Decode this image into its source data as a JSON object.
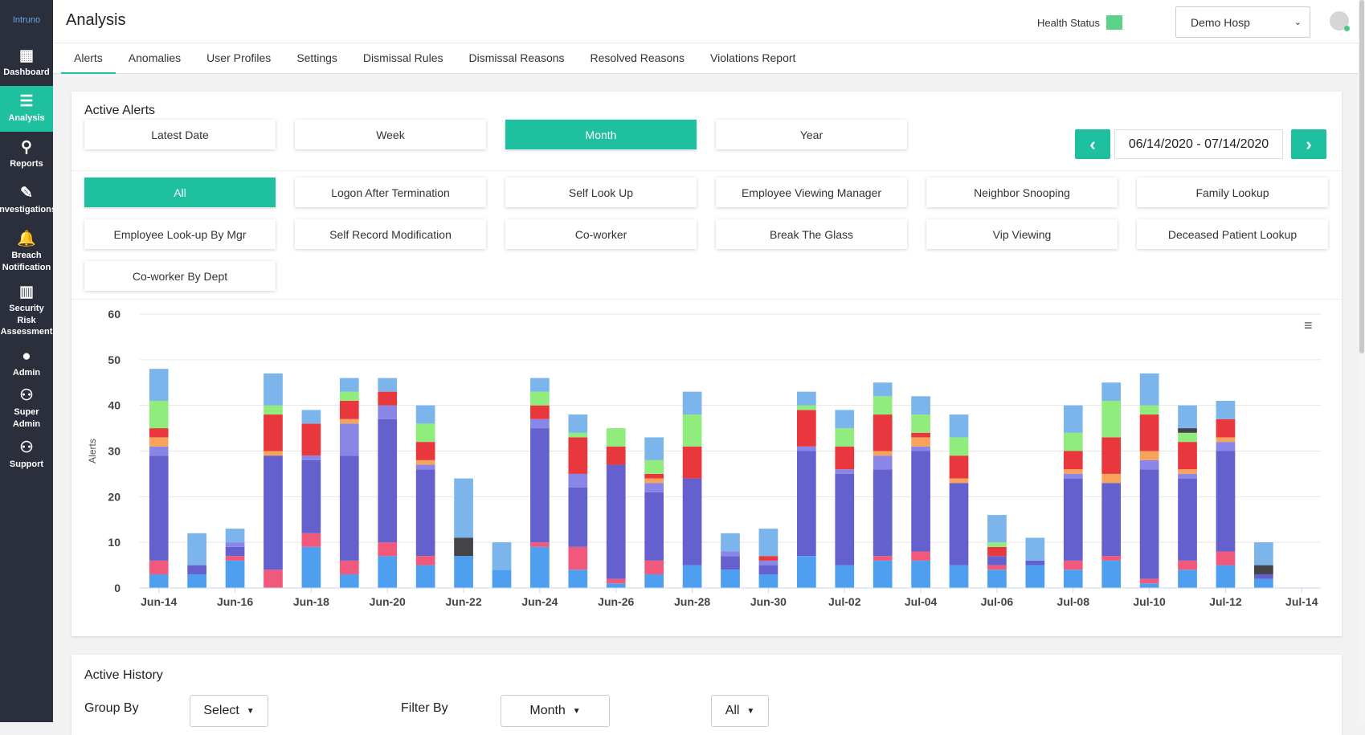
{
  "app": {
    "logo_text": "Intruno",
    "page_title": "Analysis"
  },
  "colors": {
    "accent": "#1fc0a0",
    "sidebar": "#2b2e3b",
    "health": "#5bd28a"
  },
  "sidebar": {
    "items": [
      {
        "label": "Dashboard",
        "icon": "dashboard-icon",
        "glyph": "▦"
      },
      {
        "label": "Analysis",
        "icon": "list-icon",
        "glyph": "☰"
      },
      {
        "label": "Reports",
        "icon": "search-icon",
        "glyph": "⚲"
      },
      {
        "label": "Investigations",
        "icon": "investigate-icon",
        "glyph": "✎"
      },
      {
        "label": "Breach Notification",
        "icon": "bell-icon",
        "glyph": "🔔"
      },
      {
        "label": "Security Risk Assessment",
        "icon": "bar-chart-icon",
        "glyph": "▥"
      },
      {
        "label": "Admin",
        "icon": "user-icon",
        "glyph": "●"
      },
      {
        "label": "Super Admin",
        "icon": "super-admin-icon",
        "glyph": "⚇"
      },
      {
        "label": "Support",
        "icon": "people-icon",
        "glyph": "⚇"
      }
    ]
  },
  "header": {
    "health_label": "Health Status",
    "hospital": "Demo Hosp"
  },
  "tabs": [
    "Alerts",
    "Anomalies",
    "User Profiles",
    "Settings",
    "Dismissal Rules",
    "Dismissal Reasons",
    "Resolved Reasons",
    "Violations Report"
  ],
  "active_alerts": {
    "title": "Active Alerts",
    "periods": [
      "Latest Date",
      "Week",
      "Month",
      "Year"
    ],
    "selected_period": "Month",
    "date_range": "06/14/2020 - 07/14/2020",
    "prev": "‹",
    "next": "›",
    "filters": [
      "All",
      "Logon After Termination",
      "Self Look Up",
      "Employee Viewing Manager",
      "Neighbor Snooping",
      "Family Lookup",
      "Employee Look-up By Mgr",
      "Self Record Modification",
      "Co-worker",
      "Break The Glass",
      "Vip Viewing",
      "Deceased Patient Lookup",
      "Co-worker By Dept"
    ],
    "selected_filter": "All",
    "menu_glyph": "≡"
  },
  "chart_data": {
    "type": "bar",
    "stacked": true,
    "ylabel": "Alerts",
    "ylim": [
      0,
      60
    ],
    "yticks": [
      0,
      10,
      20,
      30,
      40,
      50,
      60
    ],
    "x_tick_labels": [
      "Jun-14",
      "Jun-16",
      "Jun-18",
      "Jun-20",
      "Jun-22",
      "Jun-24",
      "Jun-26",
      "Jun-28",
      "Jun-30",
      "Jul-02",
      "Jul-04",
      "Jul-06",
      "Jul-08",
      "Jul-10",
      "Jul-12",
      "Jul-14"
    ],
    "categories": [
      "Jun-14",
      "Jun-15",
      "Jun-16",
      "Jun-17",
      "Jun-18",
      "Jun-19",
      "Jun-20",
      "Jun-21",
      "Jun-22",
      "Jun-23",
      "Jun-24",
      "Jun-25",
      "Jun-26",
      "Jun-27",
      "Jun-28",
      "Jun-29",
      "Jun-30",
      "Jul-01",
      "Jul-02",
      "Jul-03",
      "Jul-04",
      "Jul-05",
      "Jul-06",
      "Jul-07",
      "Jul-08",
      "Jul-09",
      "Jul-10",
      "Jul-11",
      "Jul-12",
      "Jul-13"
    ],
    "segment_colors": {
      "blue": "#4f9ff0",
      "pink": "#f0587c",
      "purple": "#6461cf",
      "lavender": "#8a86e8",
      "orange": "#f7a35c",
      "red": "#e8383d",
      "green": "#90ed7d",
      "dark": "#434348",
      "lightblue": "#7cb5ec"
    },
    "bars": [
      [
        [
          "blue",
          3
        ],
        [
          "pink",
          3
        ],
        [
          "purple",
          23
        ],
        [
          "lavender",
          2
        ],
        [
          "orange",
          2
        ],
        [
          "red",
          2
        ],
        [
          "green",
          6
        ],
        [
          "lightblue",
          7
        ]
      ],
      [
        [
          "blue",
          3
        ],
        [
          "purple",
          2
        ],
        [
          "lightblue",
          7
        ]
      ],
      [
        [
          "blue",
          6
        ],
        [
          "pink",
          1
        ],
        [
          "purple",
          2
        ],
        [
          "lavender",
          1
        ],
        [
          "lightblue",
          3
        ]
      ],
      [
        [
          "pink",
          4
        ],
        [
          "purple",
          25
        ],
        [
          "orange",
          1
        ],
        [
          "red",
          8
        ],
        [
          "green",
          2
        ],
        [
          "lightblue",
          7
        ]
      ],
      [
        [
          "blue",
          9
        ],
        [
          "pink",
          3
        ],
        [
          "purple",
          16
        ],
        [
          "lavender",
          1
        ],
        [
          "red",
          7
        ],
        [
          "lightblue",
          3
        ]
      ],
      [
        [
          "blue",
          3
        ],
        [
          "pink",
          3
        ],
        [
          "purple",
          23
        ],
        [
          "lavender",
          7
        ],
        [
          "orange",
          1
        ],
        [
          "red",
          4
        ],
        [
          "green",
          2
        ],
        [
          "lightblue",
          3
        ]
      ],
      [
        [
          "blue",
          7
        ],
        [
          "pink",
          3
        ],
        [
          "purple",
          27
        ],
        [
          "lavender",
          3
        ],
        [
          "red",
          3
        ],
        [
          "lightblue",
          3
        ]
      ],
      [
        [
          "blue",
          5
        ],
        [
          "pink",
          2
        ],
        [
          "purple",
          19
        ],
        [
          "lavender",
          1
        ],
        [
          "orange",
          1
        ],
        [
          "red",
          4
        ],
        [
          "green",
          4
        ],
        [
          "lightblue",
          4
        ]
      ],
      [
        [
          "blue",
          7
        ],
        [
          "dark",
          4
        ],
        [
          "lightblue",
          13
        ]
      ],
      [
        [
          "blue",
          4
        ],
        [
          "lightblue",
          6
        ]
      ],
      [
        [
          "blue",
          9
        ],
        [
          "pink",
          1
        ],
        [
          "purple",
          25
        ],
        [
          "lavender",
          2
        ],
        [
          "red",
          3
        ],
        [
          "green",
          3
        ],
        [
          "lightblue",
          3
        ]
      ],
      [
        [
          "blue",
          4
        ],
        [
          "pink",
          5
        ],
        [
          "purple",
          13
        ],
        [
          "lavender",
          3
        ],
        [
          "red",
          8
        ],
        [
          "green",
          1
        ],
        [
          "lightblue",
          4
        ]
      ],
      [
        [
          "blue",
          1
        ],
        [
          "pink",
          1
        ],
        [
          "purple",
          25
        ],
        [
          "red",
          4
        ],
        [
          "green",
          4
        ]
      ],
      [
        [
          "blue",
          3
        ],
        [
          "pink",
          3
        ],
        [
          "purple",
          15
        ],
        [
          "lavender",
          2
        ],
        [
          "orange",
          1
        ],
        [
          "red",
          1
        ],
        [
          "green",
          3
        ],
        [
          "lightblue",
          5
        ]
      ],
      [
        [
          "blue",
          5
        ],
        [
          "purple",
          19
        ],
        [
          "red",
          7
        ],
        [
          "green",
          7
        ],
        [
          "lightblue",
          5
        ]
      ],
      [
        [
          "blue",
          4
        ],
        [
          "purple",
          3
        ],
        [
          "lavender",
          1
        ],
        [
          "lightblue",
          4
        ]
      ],
      [
        [
          "blue",
          3
        ],
        [
          "purple",
          2
        ],
        [
          "lavender",
          1
        ],
        [
          "red",
          1
        ],
        [
          "lightblue",
          6
        ]
      ],
      [
        [
          "blue",
          7
        ],
        [
          "purple",
          23
        ],
        [
          "lavender",
          1
        ],
        [
          "red",
          8
        ],
        [
          "green",
          1
        ],
        [
          "lightblue",
          3
        ]
      ],
      [
        [
          "blue",
          5
        ],
        [
          "purple",
          20
        ],
        [
          "lavender",
          1
        ],
        [
          "red",
          5
        ],
        [
          "green",
          4
        ],
        [
          "lightblue",
          4
        ]
      ],
      [
        [
          "blue",
          6
        ],
        [
          "pink",
          1
        ],
        [
          "purple",
          19
        ],
        [
          "lavender",
          3
        ],
        [
          "orange",
          1
        ],
        [
          "red",
          8
        ],
        [
          "green",
          4
        ],
        [
          "lightblue",
          3
        ]
      ],
      [
        [
          "blue",
          6
        ],
        [
          "pink",
          2
        ],
        [
          "purple",
          22
        ],
        [
          "lavender",
          1
        ],
        [
          "orange",
          2
        ],
        [
          "red",
          1
        ],
        [
          "green",
          4
        ],
        [
          "lightblue",
          4
        ]
      ],
      [
        [
          "blue",
          5
        ],
        [
          "purple",
          18
        ],
        [
          "orange",
          1
        ],
        [
          "red",
          5
        ],
        [
          "green",
          4
        ],
        [
          "lightblue",
          5
        ]
      ],
      [
        [
          "blue",
          4
        ],
        [
          "pink",
          1
        ],
        [
          "purple",
          2
        ],
        [
          "red",
          2
        ],
        [
          "green",
          1
        ],
        [
          "lightblue",
          6
        ]
      ],
      [
        [
          "blue",
          5
        ],
        [
          "purple",
          1
        ],
        [
          "lightblue",
          5
        ]
      ],
      [
        [
          "blue",
          4
        ],
        [
          "pink",
          2
        ],
        [
          "purple",
          18
        ],
        [
          "lavender",
          1
        ],
        [
          "orange",
          1
        ],
        [
          "red",
          4
        ],
        [
          "green",
          4
        ],
        [
          "lightblue",
          6
        ]
      ],
      [
        [
          "blue",
          6
        ],
        [
          "pink",
          1
        ],
        [
          "purple",
          16
        ],
        [
          "orange",
          2
        ],
        [
          "red",
          8
        ],
        [
          "green",
          8
        ],
        [
          "lightblue",
          4
        ]
      ],
      [
        [
          "blue",
          1
        ],
        [
          "pink",
          1
        ],
        [
          "purple",
          24
        ],
        [
          "lavender",
          2
        ],
        [
          "orange",
          2
        ],
        [
          "red",
          8
        ],
        [
          "green",
          2
        ],
        [
          "lightblue",
          7
        ]
      ],
      [
        [
          "blue",
          4
        ],
        [
          "pink",
          2
        ],
        [
          "purple",
          18
        ],
        [
          "lavender",
          1
        ],
        [
          "orange",
          1
        ],
        [
          "red",
          6
        ],
        [
          "green",
          2
        ],
        [
          "dark",
          1
        ],
        [
          "lightblue",
          5
        ]
      ],
      [
        [
          "blue",
          5
        ],
        [
          "pink",
          3
        ],
        [
          "purple",
          22
        ],
        [
          "lavender",
          2
        ],
        [
          "orange",
          1
        ],
        [
          "red",
          4
        ],
        [
          "lightblue",
          4
        ]
      ],
      [
        [
          "blue",
          2
        ],
        [
          "purple",
          1
        ],
        [
          "dark",
          2
        ],
        [
          "lightblue",
          5
        ]
      ]
    ]
  },
  "active_history": {
    "title": "Active History",
    "group_by_label": "Group By",
    "group_by_value": "Select",
    "filter_by_label": "Filter By",
    "filter_by_value": "Month",
    "scope_value": "All"
  }
}
